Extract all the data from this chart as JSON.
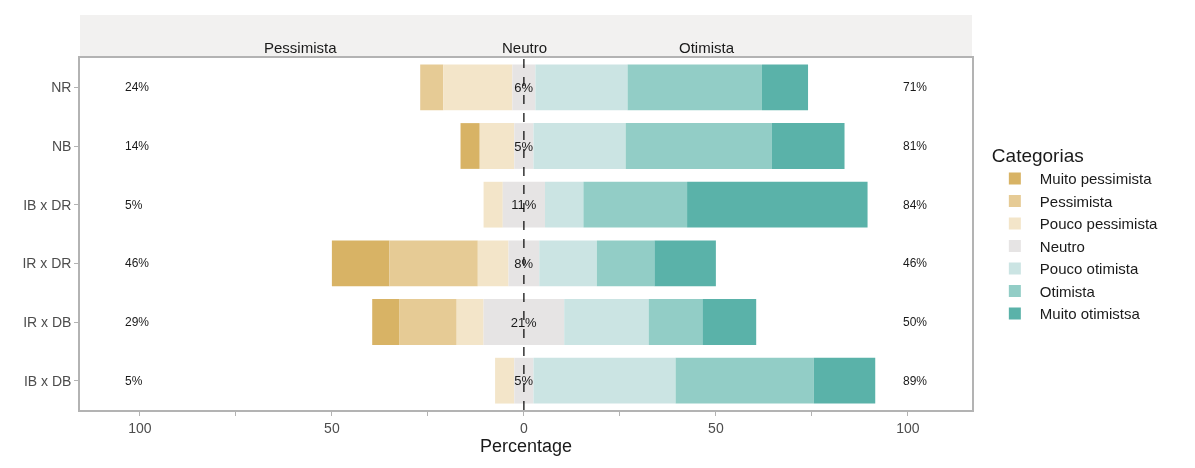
{
  "chart_data": {
    "type": "bar",
    "orientation": "horizontal",
    "xlabel": "Percentage",
    "legend_title": "Categorias",
    "legend": "right",
    "grid": false,
    "categories": [
      "NR",
      "NB",
      "IB x DR",
      "IR x DR",
      "IR x DB",
      "IB x DB"
    ],
    "series": [
      {
        "name": "Muito pessimista",
        "color": "#d8b365",
        "base": [
          null,
          -16.5,
          null,
          -50,
          -39.5,
          null
        ],
        "values": [
          0,
          5,
          0,
          15,
          7,
          0
        ]
      },
      {
        "name": "Pessimista",
        "color": "#e6cb95",
        "base": [
          -27,
          null,
          null,
          -35,
          -32.5,
          null
        ],
        "values": [
          6,
          0,
          0,
          23,
          15,
          0
        ]
      },
      {
        "name": "Pouco pessimista",
        "color": "#f3e5c9",
        "base": [
          -21,
          -11.5,
          -10.5,
          -12,
          -17.5,
          -7.5
        ],
        "values": [
          18,
          9,
          5,
          8,
          7,
          5
        ]
      },
      {
        "name": "Neutro",
        "color": "#e6e4e4",
        "base": [
          -3,
          -2.5,
          -5.5,
          -4,
          -10.5,
          -2.5
        ],
        "values": [
          6,
          5,
          11,
          8,
          21,
          5
        ],
        "value_labels": [
          "6%",
          "5%",
          "11%",
          "8%",
          "21%",
          "5%"
        ]
      },
      {
        "name": "Pouco otimista",
        "color": "#cbe4e3",
        "base": [
          3,
          2.5,
          5.5,
          4,
          10.5,
          2.5
        ],
        "values": [
          24,
          24,
          10,
          15,
          22,
          37
        ]
      },
      {
        "name": "Otimista",
        "color": "#92cdc6",
        "base": [
          27,
          26.5,
          15.5,
          19,
          32.5,
          39.5
        ],
        "values": [
          35,
          38,
          27,
          15,
          14,
          36
        ]
      },
      {
        "name": "Muito otimistsa",
        "color": "#5ab2a9",
        "base": [
          62,
          64.5,
          42.5,
          34,
          46.5,
          75.5
        ],
        "values": [
          12,
          19,
          47,
          16,
          14,
          16
        ]
      }
    ],
    "xlim": [
      -115.6,
      116.7
    ],
    "xticks": [
      {
        "value": -100,
        "label": "100"
      },
      {
        "value": -75,
        "label": null
      },
      {
        "value": -50,
        "label": "50"
      },
      {
        "value": -25,
        "label": null
      },
      0,
      {
        "value": 25,
        "label": null
      },
      50,
      {
        "value": 75,
        "label": null
      },
      100
    ],
    "ref_lines": [
      {
        "axis": "x",
        "value": 0,
        "color": "#000000",
        "line_style": "dashed"
      }
    ],
    "annotations": [
      "Pessimista",
      "Neutro",
      "Otimista",
      "24%",
      "14%",
      "5%",
      "46%",
      "29%",
      "5%",
      "71%",
      "81%",
      "84%",
      "46%",
      "50%",
      "89%"
    ]
  }
}
